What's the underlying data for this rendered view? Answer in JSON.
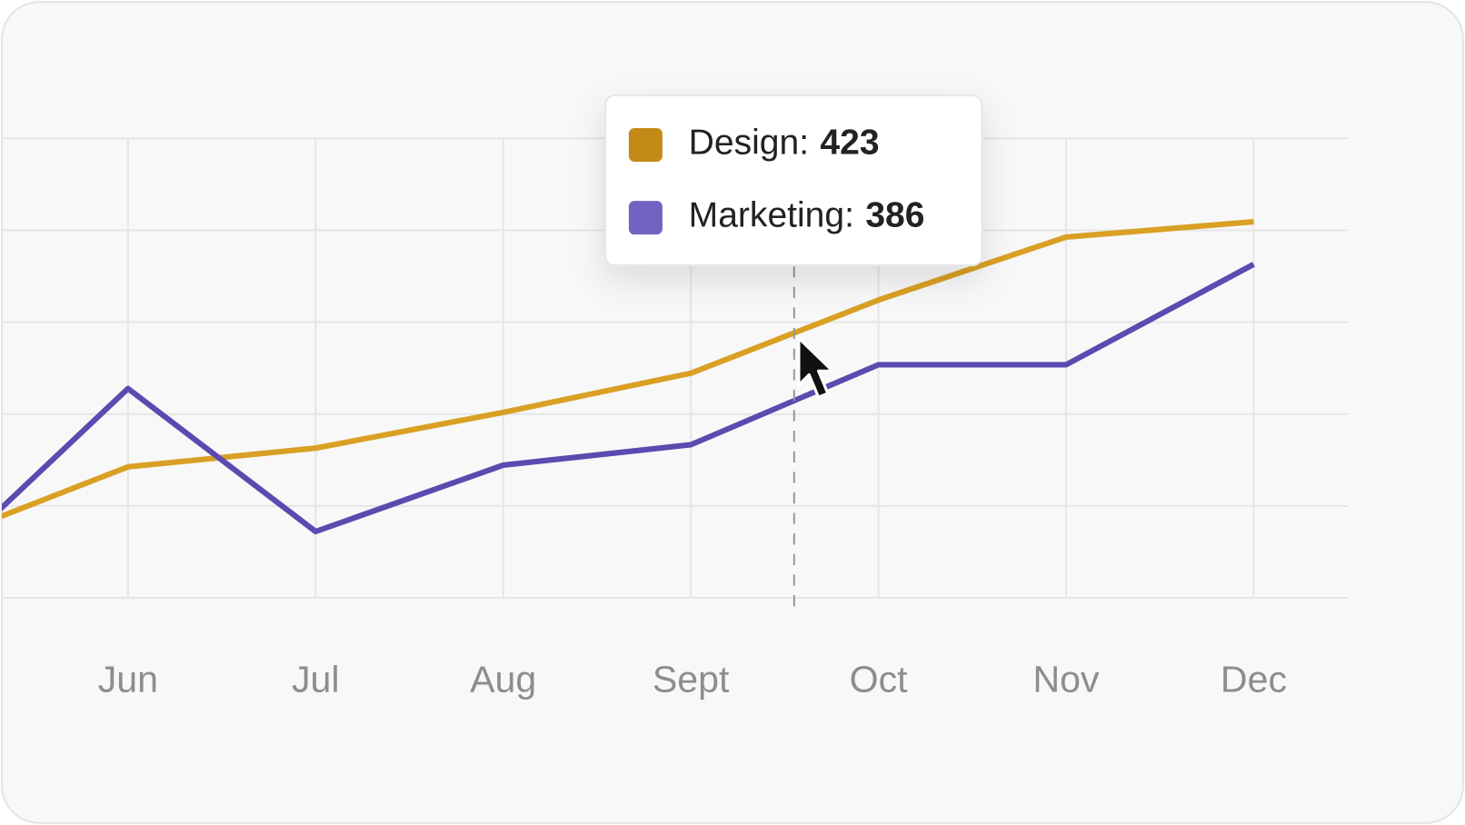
{
  "chart_data": {
    "type": "line",
    "categories": [
      null,
      "Jun",
      "Jul",
      "Aug",
      "Sept",
      "Oct",
      "Nov",
      "Dec"
    ],
    "series": [
      {
        "name": "Design",
        "color": "#d9a024",
        "values": [
          304,
          347,
          358,
          379,
          402,
          445,
          482,
          491
        ]
      },
      {
        "name": "Marketing",
        "color": "#5b4bb0",
        "values": [
          289,
          393,
          309,
          348,
          360,
          407,
          407,
          466
        ]
      }
    ],
    "ylim": [
      270,
      540
    ],
    "grid": true,
    "tooltip": {
      "items": [
        {
          "label": "Design:",
          "value": 423,
          "color": "#c48a17"
        },
        {
          "label": "Marketing:",
          "value": 386,
          "color": "#7163c2"
        }
      ]
    }
  }
}
